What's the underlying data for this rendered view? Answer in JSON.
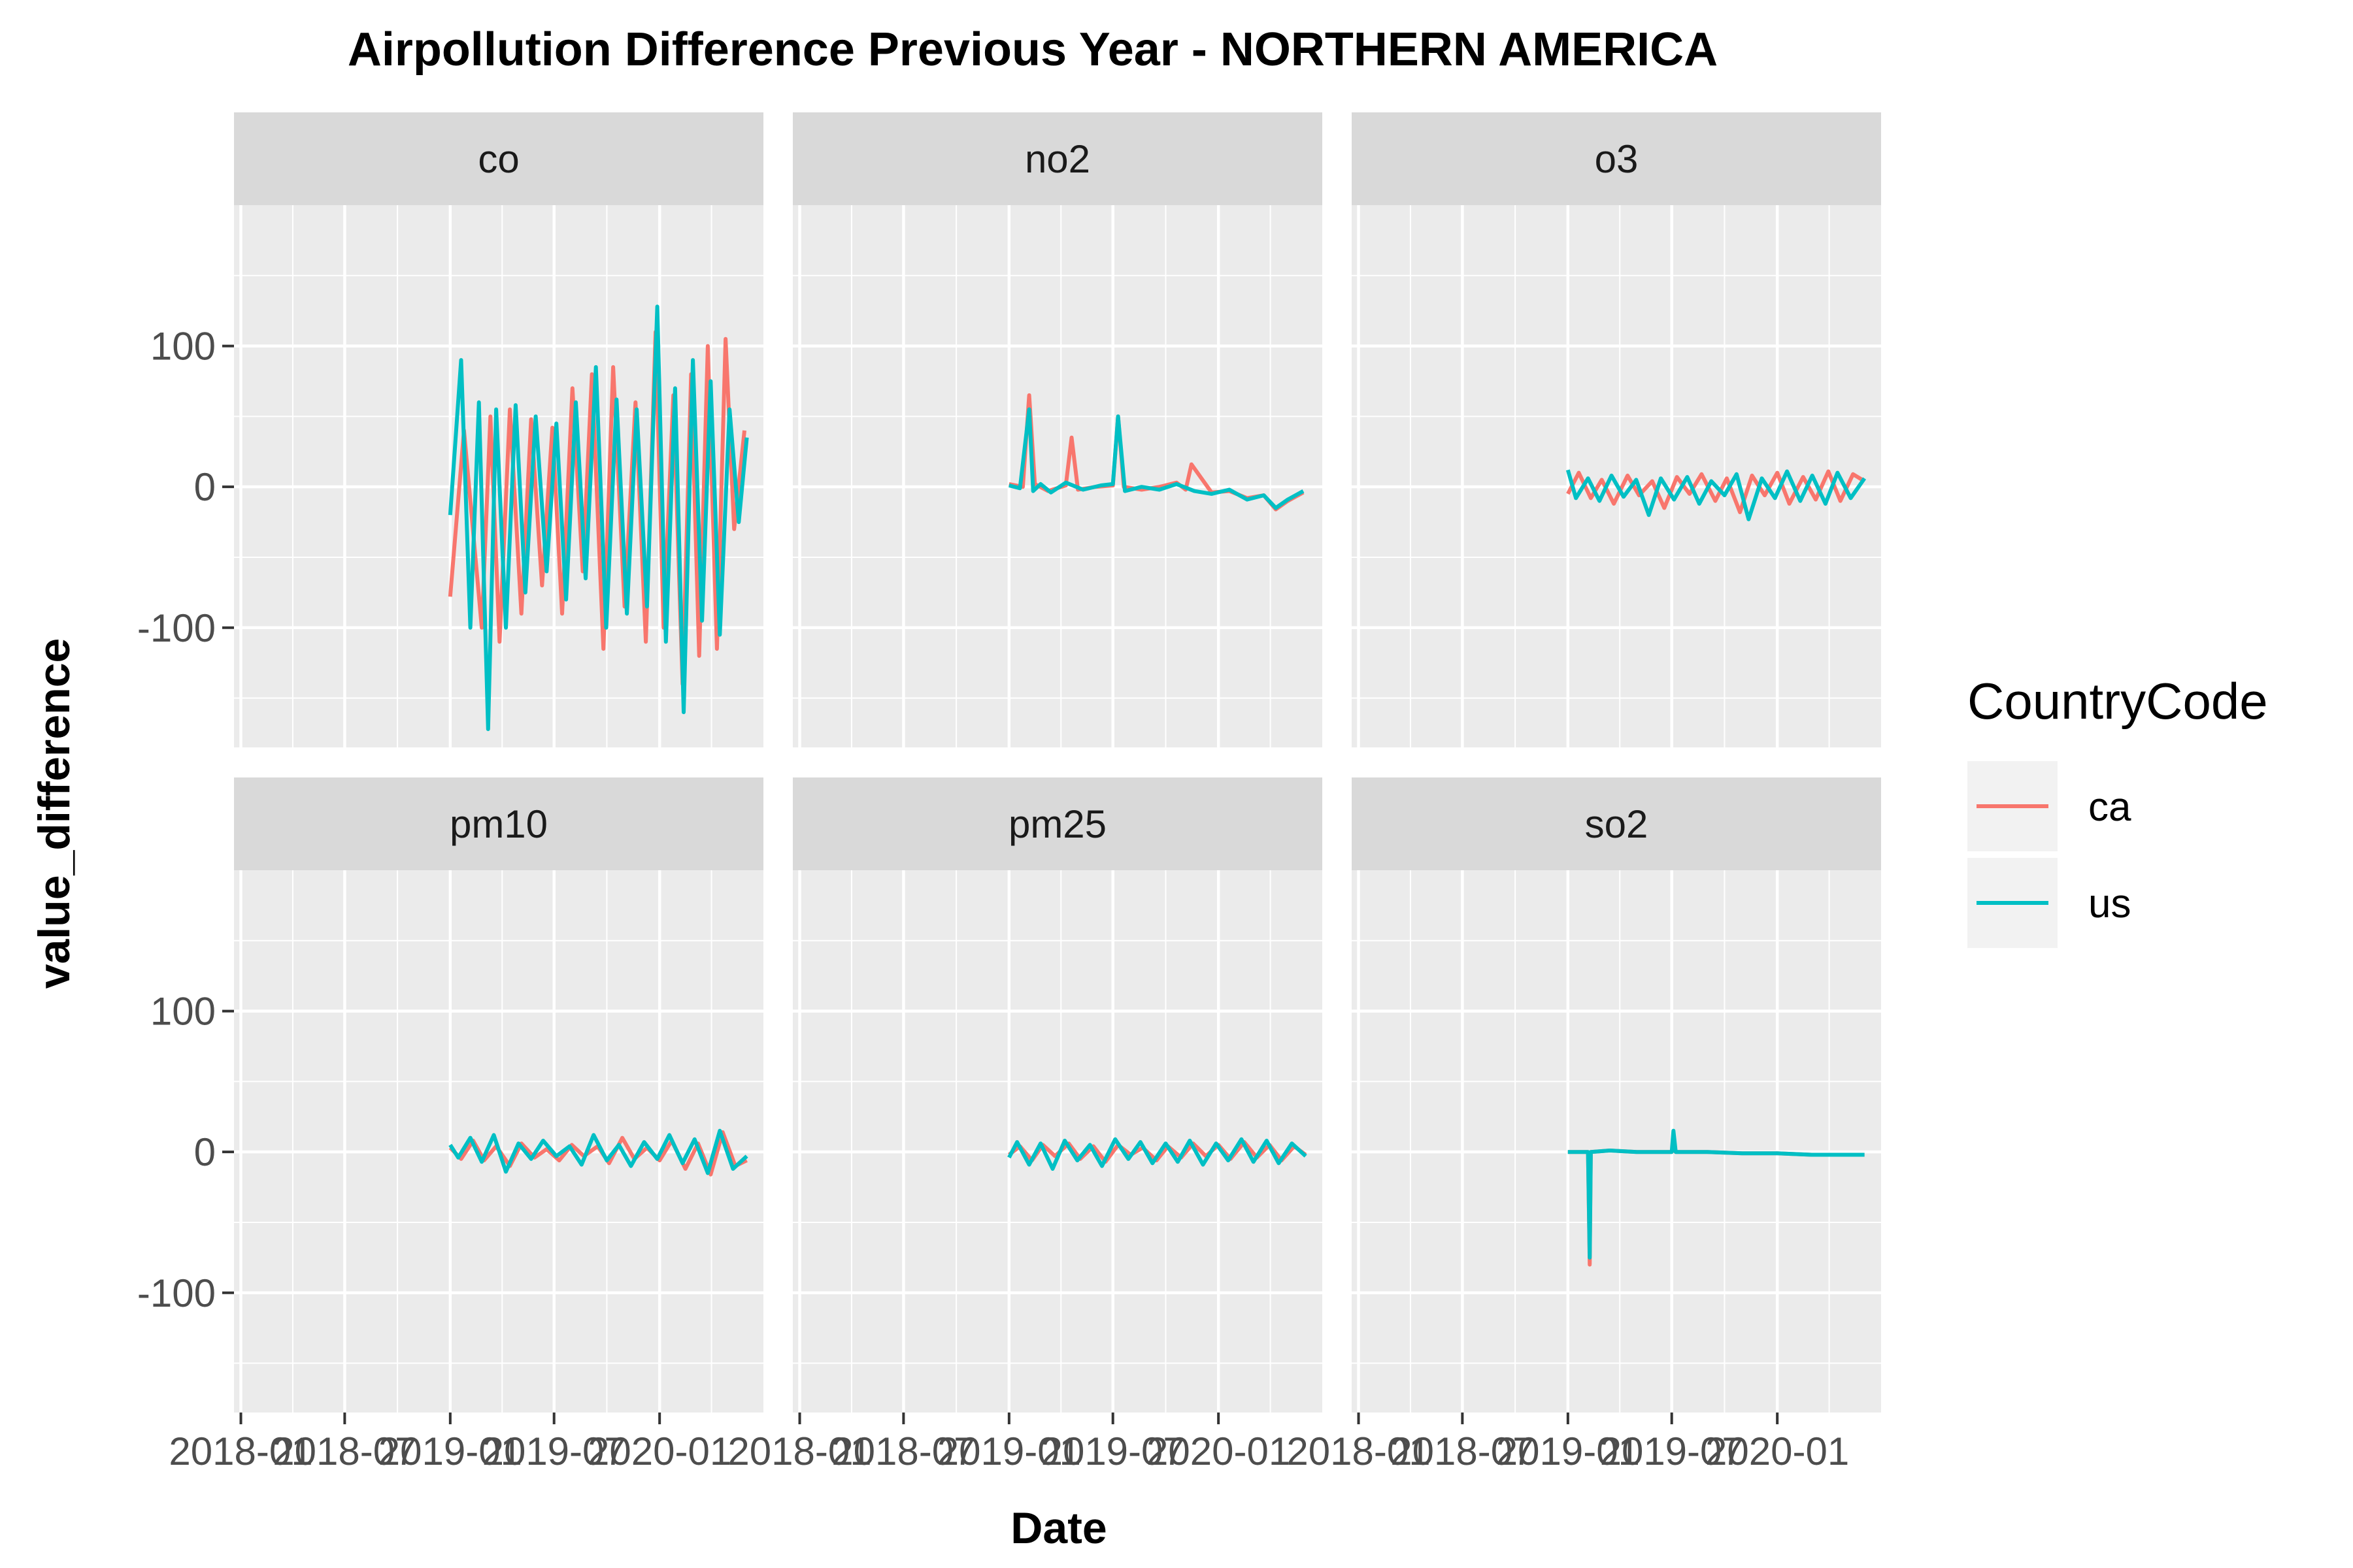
{
  "chart_data": {
    "type": "line",
    "title": "Airpollution Difference Previous Year - NORTHERN AMERICA",
    "xlabel": "Date",
    "ylabel": "value_difference",
    "legend": {
      "title": "CountryCode",
      "position": "right"
    },
    "colors": {
      "ca": "#F8766D",
      "us": "#00BFC4"
    },
    "ylim": [
      -185,
      200
    ],
    "y_ticks": [
      100,
      0,
      -100
    ],
    "y_tick_labels": [
      "100",
      "0",
      "-100"
    ],
    "xlim": [
      "2017-12-20",
      "2020-06-30"
    ],
    "x_ticks": [
      "2018-01-01",
      "2018-07-01",
      "2019-01-01",
      "2019-07-01",
      "2020-01-01"
    ],
    "x_tick_labels": [
      "2018-01",
      "2018-07",
      "2019-01",
      "2019-07",
      "2020-01"
    ],
    "grid": true,
    "panels": [
      {
        "label": "co",
        "series": [
          {
            "name": "ca",
            "x": [
              "2019-01-01",
              "2019-01-25",
              "2019-02-25",
              "2019-03-12",
              "2019-03-28",
              "2019-04-15",
              "2019-05-05",
              "2019-05-22",
              "2019-06-10",
              "2019-06-28",
              "2019-07-15",
              "2019-08-02",
              "2019-08-20",
              "2019-09-05",
              "2019-09-25",
              "2019-10-12",
              "2019-11-01",
              "2019-11-20",
              "2019-12-08",
              "2019-12-25",
              "2020-01-08",
              "2020-01-25",
              "2020-02-10",
              "2020-02-25",
              "2020-03-10",
              "2020-03-25",
              "2020-04-10",
              "2020-04-25",
              "2020-05-10",
              "2020-05-28"
            ],
            "y": [
              -78,
              40,
              -100,
              50,
              -110,
              55,
              -90,
              48,
              -70,
              42,
              -90,
              70,
              -60,
              80,
              -115,
              85,
              -85,
              60,
              -110,
              110,
              -100,
              65,
              -140,
              80,
              -120,
              100,
              -115,
              105,
              -30,
              40
            ]
          },
          {
            "name": "us",
            "x": [
              "2019-01-01",
              "2019-01-20",
              "2019-02-05",
              "2019-02-20",
              "2019-03-08",
              "2019-03-22",
              "2019-04-08",
              "2019-04-25",
              "2019-05-12",
              "2019-05-30",
              "2019-06-18",
              "2019-07-05",
              "2019-07-22",
              "2019-08-08",
              "2019-08-25",
              "2019-09-12",
              "2019-09-30",
              "2019-10-18",
              "2019-11-05",
              "2019-11-22",
              "2019-12-10",
              "2019-12-28",
              "2020-01-12",
              "2020-01-28",
              "2020-02-12",
              "2020-02-28",
              "2020-03-15",
              "2020-03-30",
              "2020-04-15",
              "2020-05-02",
              "2020-05-18",
              "2020-06-01"
            ],
            "y": [
              -20,
              90,
              -100,
              60,
              -172,
              55,
              -100,
              58,
              -75,
              50,
              -60,
              45,
              -80,
              60,
              -65,
              85,
              -100,
              62,
              -90,
              55,
              -85,
              128,
              -110,
              70,
              -160,
              90,
              -95,
              75,
              -105,
              55,
              -25,
              35
            ]
          }
        ]
      },
      {
        "label": "no2",
        "series": [
          {
            "name": "ca",
            "x": [
              "2019-01-01",
              "2019-01-25",
              "2019-02-05",
              "2019-02-15",
              "2019-03-10",
              "2019-04-10",
              "2019-04-20",
              "2019-05-01",
              "2019-06-01",
              "2019-07-01",
              "2019-07-10",
              "2019-07-20",
              "2019-08-20",
              "2019-09-20",
              "2019-10-20",
              "2019-11-05",
              "2019-11-15",
              "2019-12-20",
              "2020-01-20",
              "2020-02-20",
              "2020-03-20",
              "2020-04-10",
              "2020-05-01",
              "2020-05-28"
            ],
            "y": [
              2,
              0,
              65,
              2,
              -3,
              1,
              35,
              -2,
              0,
              1,
              50,
              0,
              -2,
              0,
              3,
              -2,
              16,
              -4,
              -3,
              -8,
              -6,
              -16,
              -10,
              -4
            ]
          },
          {
            "name": "us",
            "x": [
              "2019-01-01",
              "2019-01-20",
              "2019-02-05",
              "2019-02-12",
              "2019-02-25",
              "2019-03-15",
              "2019-04-10",
              "2019-05-10",
              "2019-06-10",
              "2019-07-01",
              "2019-07-10",
              "2019-07-22",
              "2019-08-20",
              "2019-09-20",
              "2019-10-20",
              "2019-11-20",
              "2019-12-20",
              "2020-01-20",
              "2020-02-20",
              "2020-03-20",
              "2020-04-10",
              "2020-05-01",
              "2020-05-28"
            ],
            "y": [
              1,
              -1,
              55,
              -3,
              2,
              -4,
              3,
              -2,
              1,
              2,
              50,
              -3,
              0,
              -2,
              2,
              -3,
              -5,
              -2,
              -9,
              -6,
              -15,
              -9,
              -3
            ]
          }
        ]
      },
      {
        "label": "o3",
        "series": [
          {
            "name": "ca",
            "x": [
              "2019-01-01",
              "2019-01-20",
              "2019-02-10",
              "2019-03-01",
              "2019-03-22",
              "2019-04-15",
              "2019-05-05",
              "2019-05-28",
              "2019-06-18",
              "2019-07-10",
              "2019-08-01",
              "2019-08-22",
              "2019-09-15",
              "2019-10-05",
              "2019-10-28",
              "2019-11-18",
              "2019-12-10",
              "2020-01-01",
              "2020-01-22",
              "2020-02-15",
              "2020-03-08",
              "2020-03-30",
              "2020-04-20",
              "2020-05-12",
              "2020-06-01"
            ],
            "y": [
              -5,
              10,
              -8,
              5,
              -12,
              8,
              -6,
              4,
              -15,
              7,
              -5,
              9,
              -10,
              6,
              -18,
              8,
              -6,
              10,
              -12,
              7,
              -9,
              11,
              -10,
              9,
              4
            ]
          },
          {
            "name": "us",
            "x": [
              "2019-01-01",
              "2019-01-15",
              "2019-02-05",
              "2019-02-25",
              "2019-03-18",
              "2019-04-08",
              "2019-04-30",
              "2019-05-22",
              "2019-06-12",
              "2019-07-05",
              "2019-07-28",
              "2019-08-18",
              "2019-09-08",
              "2019-10-01",
              "2019-10-22",
              "2019-11-12",
              "2019-12-05",
              "2019-12-28",
              "2020-01-18",
              "2020-02-10",
              "2020-03-02",
              "2020-03-25",
              "2020-04-15",
              "2020-05-08",
              "2020-06-01"
            ],
            "y": [
              12,
              -8,
              6,
              -10,
              8,
              -7,
              5,
              -20,
              6,
              -9,
              7,
              -12,
              4,
              -6,
              9,
              -23,
              6,
              -8,
              11,
              -10,
              8,
              -12,
              10,
              -8,
              6
            ]
          }
        ]
      },
      {
        "label": "pm10",
        "series": [
          {
            "name": "ca",
            "x": [
              "2019-01-01",
              "2019-01-20",
              "2019-02-10",
              "2019-03-01",
              "2019-03-22",
              "2019-04-15",
              "2019-05-05",
              "2019-05-28",
              "2019-06-18",
              "2019-07-10",
              "2019-08-01",
              "2019-08-22",
              "2019-09-15",
              "2019-10-05",
              "2019-10-28",
              "2019-11-18",
              "2019-12-10",
              "2020-01-01",
              "2020-01-22",
              "2020-02-15",
              "2020-03-08",
              "2020-03-30",
              "2020-04-20",
              "2020-05-12",
              "2020-06-01"
            ],
            "y": [
              3,
              -5,
              8,
              -6,
              4,
              -10,
              6,
              -4,
              2,
              -6,
              5,
              -3,
              4,
              -8,
              10,
              -5,
              3,
              -6,
              8,
              -12,
              6,
              -16,
              14,
              -10,
              -6
            ]
          },
          {
            "name": "us",
            "x": [
              "2019-01-01",
              "2019-01-15",
              "2019-02-05",
              "2019-02-25",
              "2019-03-18",
              "2019-04-08",
              "2019-04-30",
              "2019-05-22",
              "2019-06-12",
              "2019-07-05",
              "2019-07-28",
              "2019-08-18",
              "2019-09-08",
              "2019-10-01",
              "2019-10-22",
              "2019-11-12",
              "2019-12-05",
              "2019-12-28",
              "2020-01-18",
              "2020-02-10",
              "2020-03-02",
              "2020-03-25",
              "2020-04-15",
              "2020-05-08",
              "2020-06-01"
            ],
            "y": [
              5,
              -4,
              10,
              -7,
              12,
              -14,
              6,
              -5,
              8,
              -3,
              4,
              -9,
              12,
              -6,
              5,
              -10,
              7,
              -5,
              12,
              -8,
              9,
              -15,
              15,
              -12,
              -3
            ]
          }
        ]
      },
      {
        "label": "pm25",
        "series": [
          {
            "name": "ca",
            "x": [
              "2019-01-01",
              "2019-01-20",
              "2019-02-10",
              "2019-03-01",
              "2019-03-22",
              "2019-04-15",
              "2019-05-05",
              "2019-05-28",
              "2019-06-18",
              "2019-07-10",
              "2019-08-01",
              "2019-08-22",
              "2019-09-15",
              "2019-10-05",
              "2019-10-28",
              "2019-11-18",
              "2019-12-10",
              "2020-01-01",
              "2020-01-22",
              "2020-02-15",
              "2020-03-08",
              "2020-03-30",
              "2020-04-20",
              "2020-05-12",
              "2020-06-01"
            ],
            "y": [
              -2,
              4,
              -6,
              5,
              -3,
              6,
              -5,
              4,
              -7,
              5,
              -2,
              3,
              -6,
              4,
              -4,
              6,
              -3,
              5,
              -5,
              7,
              -4,
              5,
              -6,
              4,
              -2
            ]
          },
          {
            "name": "us",
            "x": [
              "2019-01-01",
              "2019-01-15",
              "2019-02-05",
              "2019-02-25",
              "2019-03-18",
              "2019-04-08",
              "2019-04-30",
              "2019-05-22",
              "2019-06-12",
              "2019-07-05",
              "2019-07-28",
              "2019-08-18",
              "2019-09-08",
              "2019-10-01",
              "2019-10-22",
              "2019-11-12",
              "2019-12-05",
              "2019-12-28",
              "2020-01-18",
              "2020-02-10",
              "2020-03-02",
              "2020-03-25",
              "2020-04-15",
              "2020-05-08",
              "2020-06-01"
            ],
            "y": [
              -4,
              7,
              -9,
              6,
              -12,
              8,
              -6,
              5,
              -10,
              9,
              -5,
              7,
              -8,
              6,
              -7,
              8,
              -9,
              6,
              -6,
              9,
              -7,
              8,
              -8,
              6,
              -3
            ]
          }
        ]
      },
      {
        "label": "so2",
        "series": [
          {
            "name": "ca",
            "x": [
              "2019-01-01",
              "2019-02-05",
              "2019-02-08",
              "2019-02-10",
              "2019-03-15",
              "2019-05-01",
              "2019-07-01",
              "2019-07-04",
              "2019-07-08",
              "2019-09-01",
              "2019-11-01",
              "2020-01-01",
              "2020-03-01",
              "2020-06-01"
            ],
            "y": [
              0,
              0,
              -80,
              0,
              1,
              0,
              0,
              2,
              0,
              0,
              -1,
              -1,
              -2,
              -2
            ]
          },
          {
            "name": "us",
            "x": [
              "2019-01-01",
              "2019-02-05",
              "2019-02-08",
              "2019-02-10",
              "2019-03-15",
              "2019-05-01",
              "2019-07-01",
              "2019-07-04",
              "2019-07-08",
              "2019-09-01",
              "2019-11-01",
              "2020-01-01",
              "2020-03-01",
              "2020-06-01"
            ],
            "y": [
              0,
              0,
              -75,
              0,
              1,
              0,
              0,
              15,
              0,
              0,
              -1,
              -1,
              -2,
              -2
            ]
          }
        ]
      }
    ]
  }
}
